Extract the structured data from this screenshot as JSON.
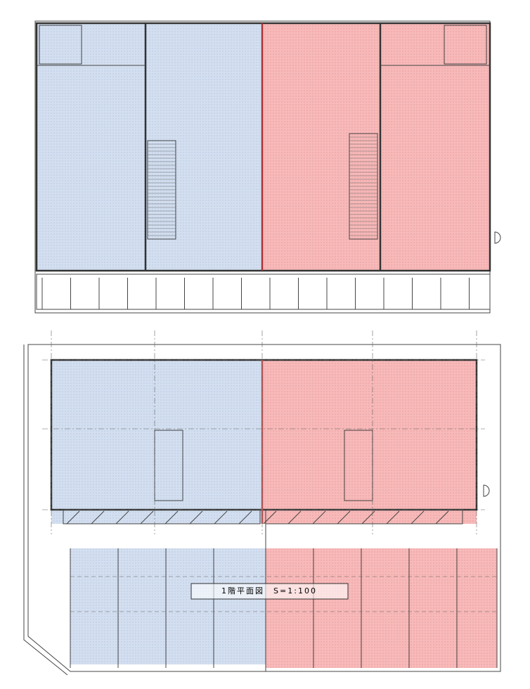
{
  "plan_title": "1階平面図　S=1:100"
}
